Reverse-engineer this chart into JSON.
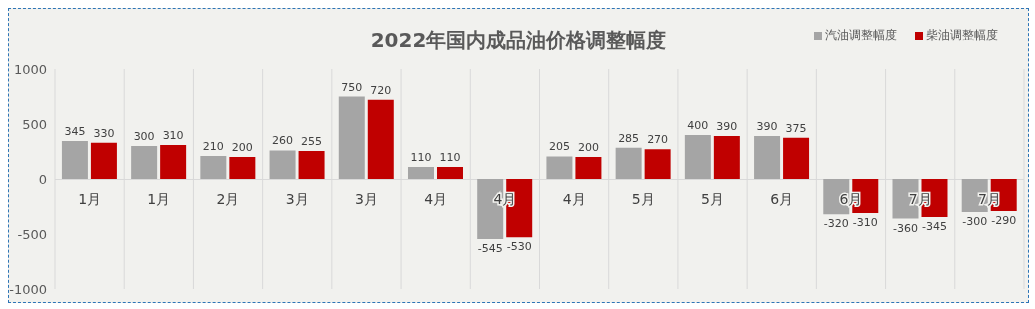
{
  "chart_data": {
    "type": "bar",
    "title": "2022年国内成品油价格调整幅度",
    "categories": [
      "1月",
      "1月",
      "2月",
      "3月",
      "3月",
      "4月",
      "4月",
      "4月",
      "5月",
      "5月",
      "6月",
      "6月",
      "7月",
      "7月"
    ],
    "series": [
      {
        "name": "汽油调整幅度",
        "color": "#a5a5a5",
        "values": [
          345,
          300,
          210,
          260,
          750,
          110,
          -545,
          205,
          285,
          400,
          390,
          -320,
          -360,
          -300
        ]
      },
      {
        "name": "柴油调整幅度",
        "color": "#c00000",
        "values": [
          330,
          310,
          200,
          255,
          720,
          110,
          -530,
          200,
          270,
          390,
          375,
          -310,
          -345,
          -290
        ]
      }
    ],
    "ylim": [
      -1000,
      1000
    ],
    "yticks": [
      -1000,
      -500,
      0,
      500,
      1000
    ],
    "grid": "x",
    "legend": "top right",
    "data_labels": true
  }
}
